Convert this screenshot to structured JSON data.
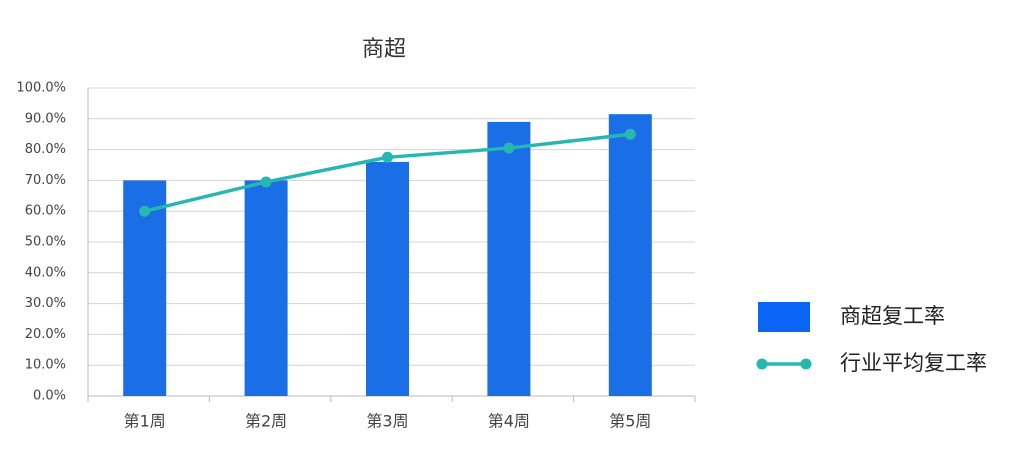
{
  "chart_data": {
    "type": "bar",
    "title": "商超",
    "categories": [
      "第1周",
      "第2周",
      "第3周",
      "第4周",
      "第5周"
    ],
    "series": [
      {
        "name": "商超复工率",
        "type": "bar",
        "color": "#1a6fe6",
        "values": [
          70,
          70,
          76,
          89,
          91.5
        ]
      },
      {
        "name": "行业平均复工率",
        "type": "line",
        "color": "#26b8b0",
        "values": [
          60,
          69.5,
          77.5,
          80.5,
          85
        ]
      }
    ],
    "ylim": [
      0,
      100
    ],
    "yticks": [
      {
        "value": 0,
        "label": "0.0%"
      },
      {
        "value": 10,
        "label": "10.0%"
      },
      {
        "value": 20,
        "label": "20.0%"
      },
      {
        "value": 30,
        "label": "30.0%"
      },
      {
        "value": 40,
        "label": "40.0%"
      },
      {
        "value": 50,
        "label": "50.0%"
      },
      {
        "value": 60,
        "label": "60.0%"
      },
      {
        "value": 70,
        "label": "70.0%"
      },
      {
        "value": 80,
        "label": "80.0%"
      },
      {
        "value": 90,
        "label": "90.0%"
      },
      {
        "value": 100,
        "label": "100.0%"
      }
    ],
    "grid": true,
    "legend": "right"
  }
}
